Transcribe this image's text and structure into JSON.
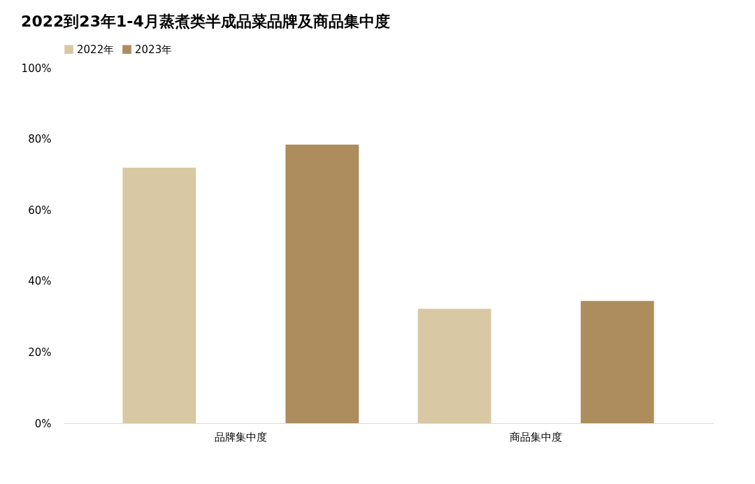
{
  "chart_data": {
    "type": "bar",
    "title": "2022到23年1-4月蒸煮类半成品菜品牌及商品集中度",
    "categories": [
      "品牌集中度",
      "商品集中度"
    ],
    "series": [
      {
        "name": "2022年",
        "color": "#d8c8a3",
        "values": [
          71.9,
          32.2
        ]
      },
      {
        "name": "2023年",
        "color": "#ad8d5e",
        "values": [
          78.4,
          34.4
        ]
      }
    ],
    "ylim": [
      0,
      100
    ],
    "yticks": [
      {
        "value": 0,
        "label": "0%"
      },
      {
        "value": 20,
        "label": "20%"
      },
      {
        "value": 40,
        "label": "40%"
      },
      {
        "value": 60,
        "label": "60%"
      },
      {
        "value": 80,
        "label": "80%"
      },
      {
        "value": 100,
        "label": "100%"
      }
    ],
    "grid": false,
    "legend": "top"
  }
}
